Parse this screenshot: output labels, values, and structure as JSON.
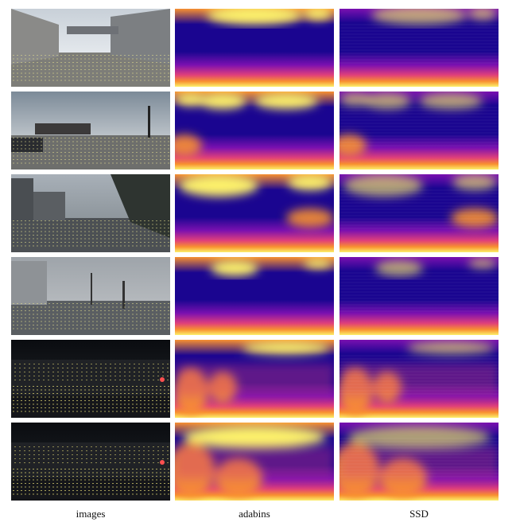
{
  "columns": [
    {
      "key": "images",
      "label": "images"
    },
    {
      "key": "adabins",
      "label": "adabins"
    },
    {
      "key": "ssd",
      "label": "SSD"
    }
  ],
  "rows": [
    {
      "scene": "daytime-street-skybridge"
    },
    {
      "scene": "cloudy-intersection-truck"
    },
    {
      "scene": "rainy-street-traffic"
    },
    {
      "scene": "overcast-rainy-road"
    },
    {
      "scene": "night-street-lights"
    },
    {
      "scene": "night-dark-street"
    }
  ],
  "colors": {
    "depth_far": "#1a0590",
    "depth_mid": "#7a10b0",
    "depth_warm": "#e0407a",
    "depth_orange": "#f89030",
    "depth_near": "#fcf06a"
  }
}
